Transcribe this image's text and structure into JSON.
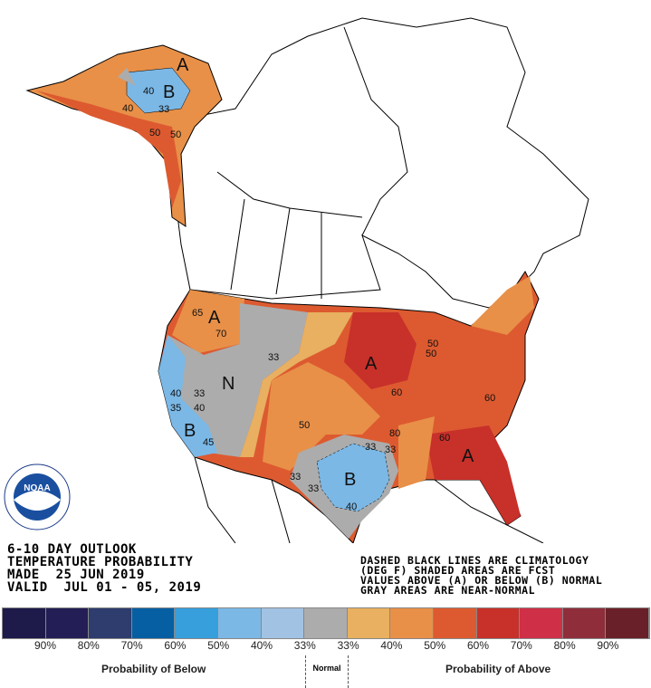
{
  "title_block": {
    "line1": "6-10 DAY OUTLOOK",
    "line2": "TEMPERATURE PROBABILITY",
    "line3": "MADE  25 JUN 2019",
    "line4": "VALID  JUL 01 - 05, 2019"
  },
  "notes": {
    "line1": "DASHED BLACK LINES ARE CLIMATOLOGY",
    "line2": "(DEG F) SHADED AREAS ARE FCST",
    "line3": "VALUES ABOVE (A) OR BELOW (B) NORMAL",
    "line4": "GRAY AREAS ARE NEAR-NORMAL"
  },
  "logo": {
    "text": "NOAA",
    "ring_text": "NATIONAL OCEANIC AND ATMOSPHERIC ADMINISTRATION · U.S. DEPARTMENT OF COMMERCE"
  },
  "legend": {
    "colors": [
      "#1e1a4a",
      "#231e55",
      "#2e3c6e",
      "#065fa3",
      "#369fdc",
      "#7bb8e6",
      "#a2c2e3",
      "#acacac",
      "#e8b060",
      "#e89048",
      "#dd5a30",
      "#c8302a",
      "#cf3048",
      "#8f2e3a",
      "#6a2028"
    ],
    "ticks": [
      "90%",
      "80%",
      "70%",
      "60%",
      "50%",
      "40%",
      "33%",
      "33%",
      "40%",
      "50%",
      "60%",
      "70%",
      "80%",
      "90%"
    ],
    "below_label": "Probability of Below",
    "normal_label": "Normal",
    "above_label": "Probability of Above"
  },
  "map_labels": {
    "alaska_b": "B",
    "alaska_a": "A",
    "west_a": "A",
    "nevada_n": "N",
    "calif_b": "B",
    "midwest_a": "A",
    "southeast_a": "A",
    "texas_b": "B",
    "contours": [
      "40",
      "33",
      "40",
      "50",
      "50",
      "65",
      "70",
      "33",
      "40",
      "33",
      "35",
      "40",
      "45",
      "33",
      "50",
      "50",
      "60",
      "33",
      "80",
      "33",
      "60",
      "60",
      "50",
      "33",
      "40"
    ]
  }
}
